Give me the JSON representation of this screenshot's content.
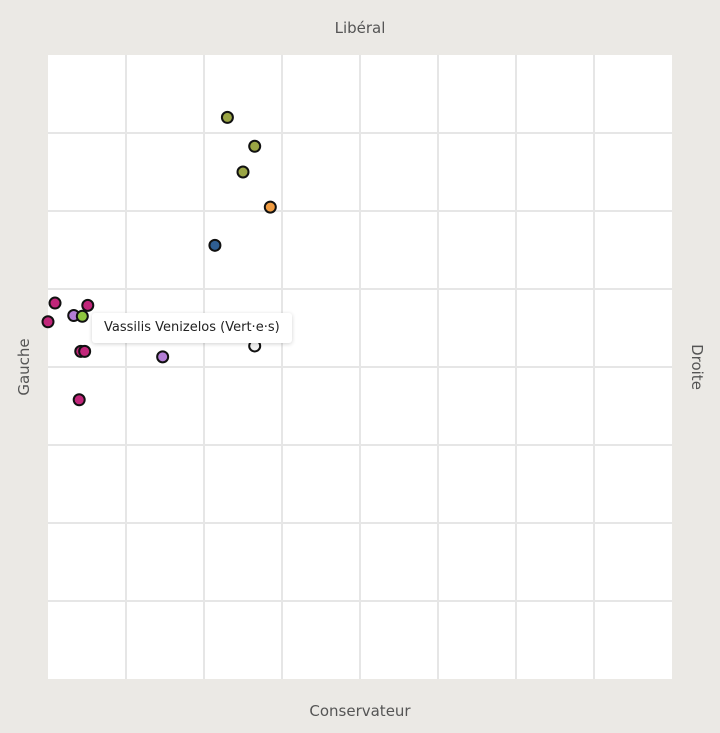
{
  "axes": {
    "top": "Libéral",
    "bottom": "Conservateur",
    "left": "Gauche",
    "right": "Droite"
  },
  "tooltip": {
    "text": "Vassilis Venizelos (Vert·e·s)"
  },
  "chart_data": {
    "type": "scatter",
    "grid": true,
    "xlim": [
      0,
      8
    ],
    "ylim": [
      0,
      8
    ],
    "x_direction": "Gauche to Droite",
    "y_direction": "Conservateur to Libéral",
    "points": [
      {
        "x": 2.3,
        "y": 7.2,
        "color": "#9aa544"
      },
      {
        "x": 2.65,
        "y": 6.83,
        "color": "#9aa544"
      },
      {
        "x": 2.5,
        "y": 6.5,
        "color": "#9aa544"
      },
      {
        "x": 2.85,
        "y": 6.05,
        "color": "#f09c43"
      },
      {
        "x": 2.14,
        "y": 5.56,
        "color": "#2f5e93"
      },
      {
        "x": 0.09,
        "y": 4.82,
        "color": "#c1267a"
      },
      {
        "x": 0.51,
        "y": 4.79,
        "color": "#c1267a"
      },
      {
        "x": 0.0,
        "y": 4.58,
        "color": "#c1267a"
      },
      {
        "x": 0.33,
        "y": 4.66,
        "color": "#b47ed6"
      },
      {
        "x": 0.44,
        "y": 4.65,
        "color": "#8ec63f"
      },
      {
        "x": 0.42,
        "y": 4.2,
        "color": "#c1267a"
      },
      {
        "x": 0.47,
        "y": 4.2,
        "color": "#c1267a"
      },
      {
        "x": 1.47,
        "y": 4.13,
        "color": "#b47ed6"
      },
      {
        "x": 2.65,
        "y": 4.27,
        "color": "#f2f2f2"
      },
      {
        "x": 0.4,
        "y": 3.58,
        "color": "#c1267a"
      }
    ]
  }
}
